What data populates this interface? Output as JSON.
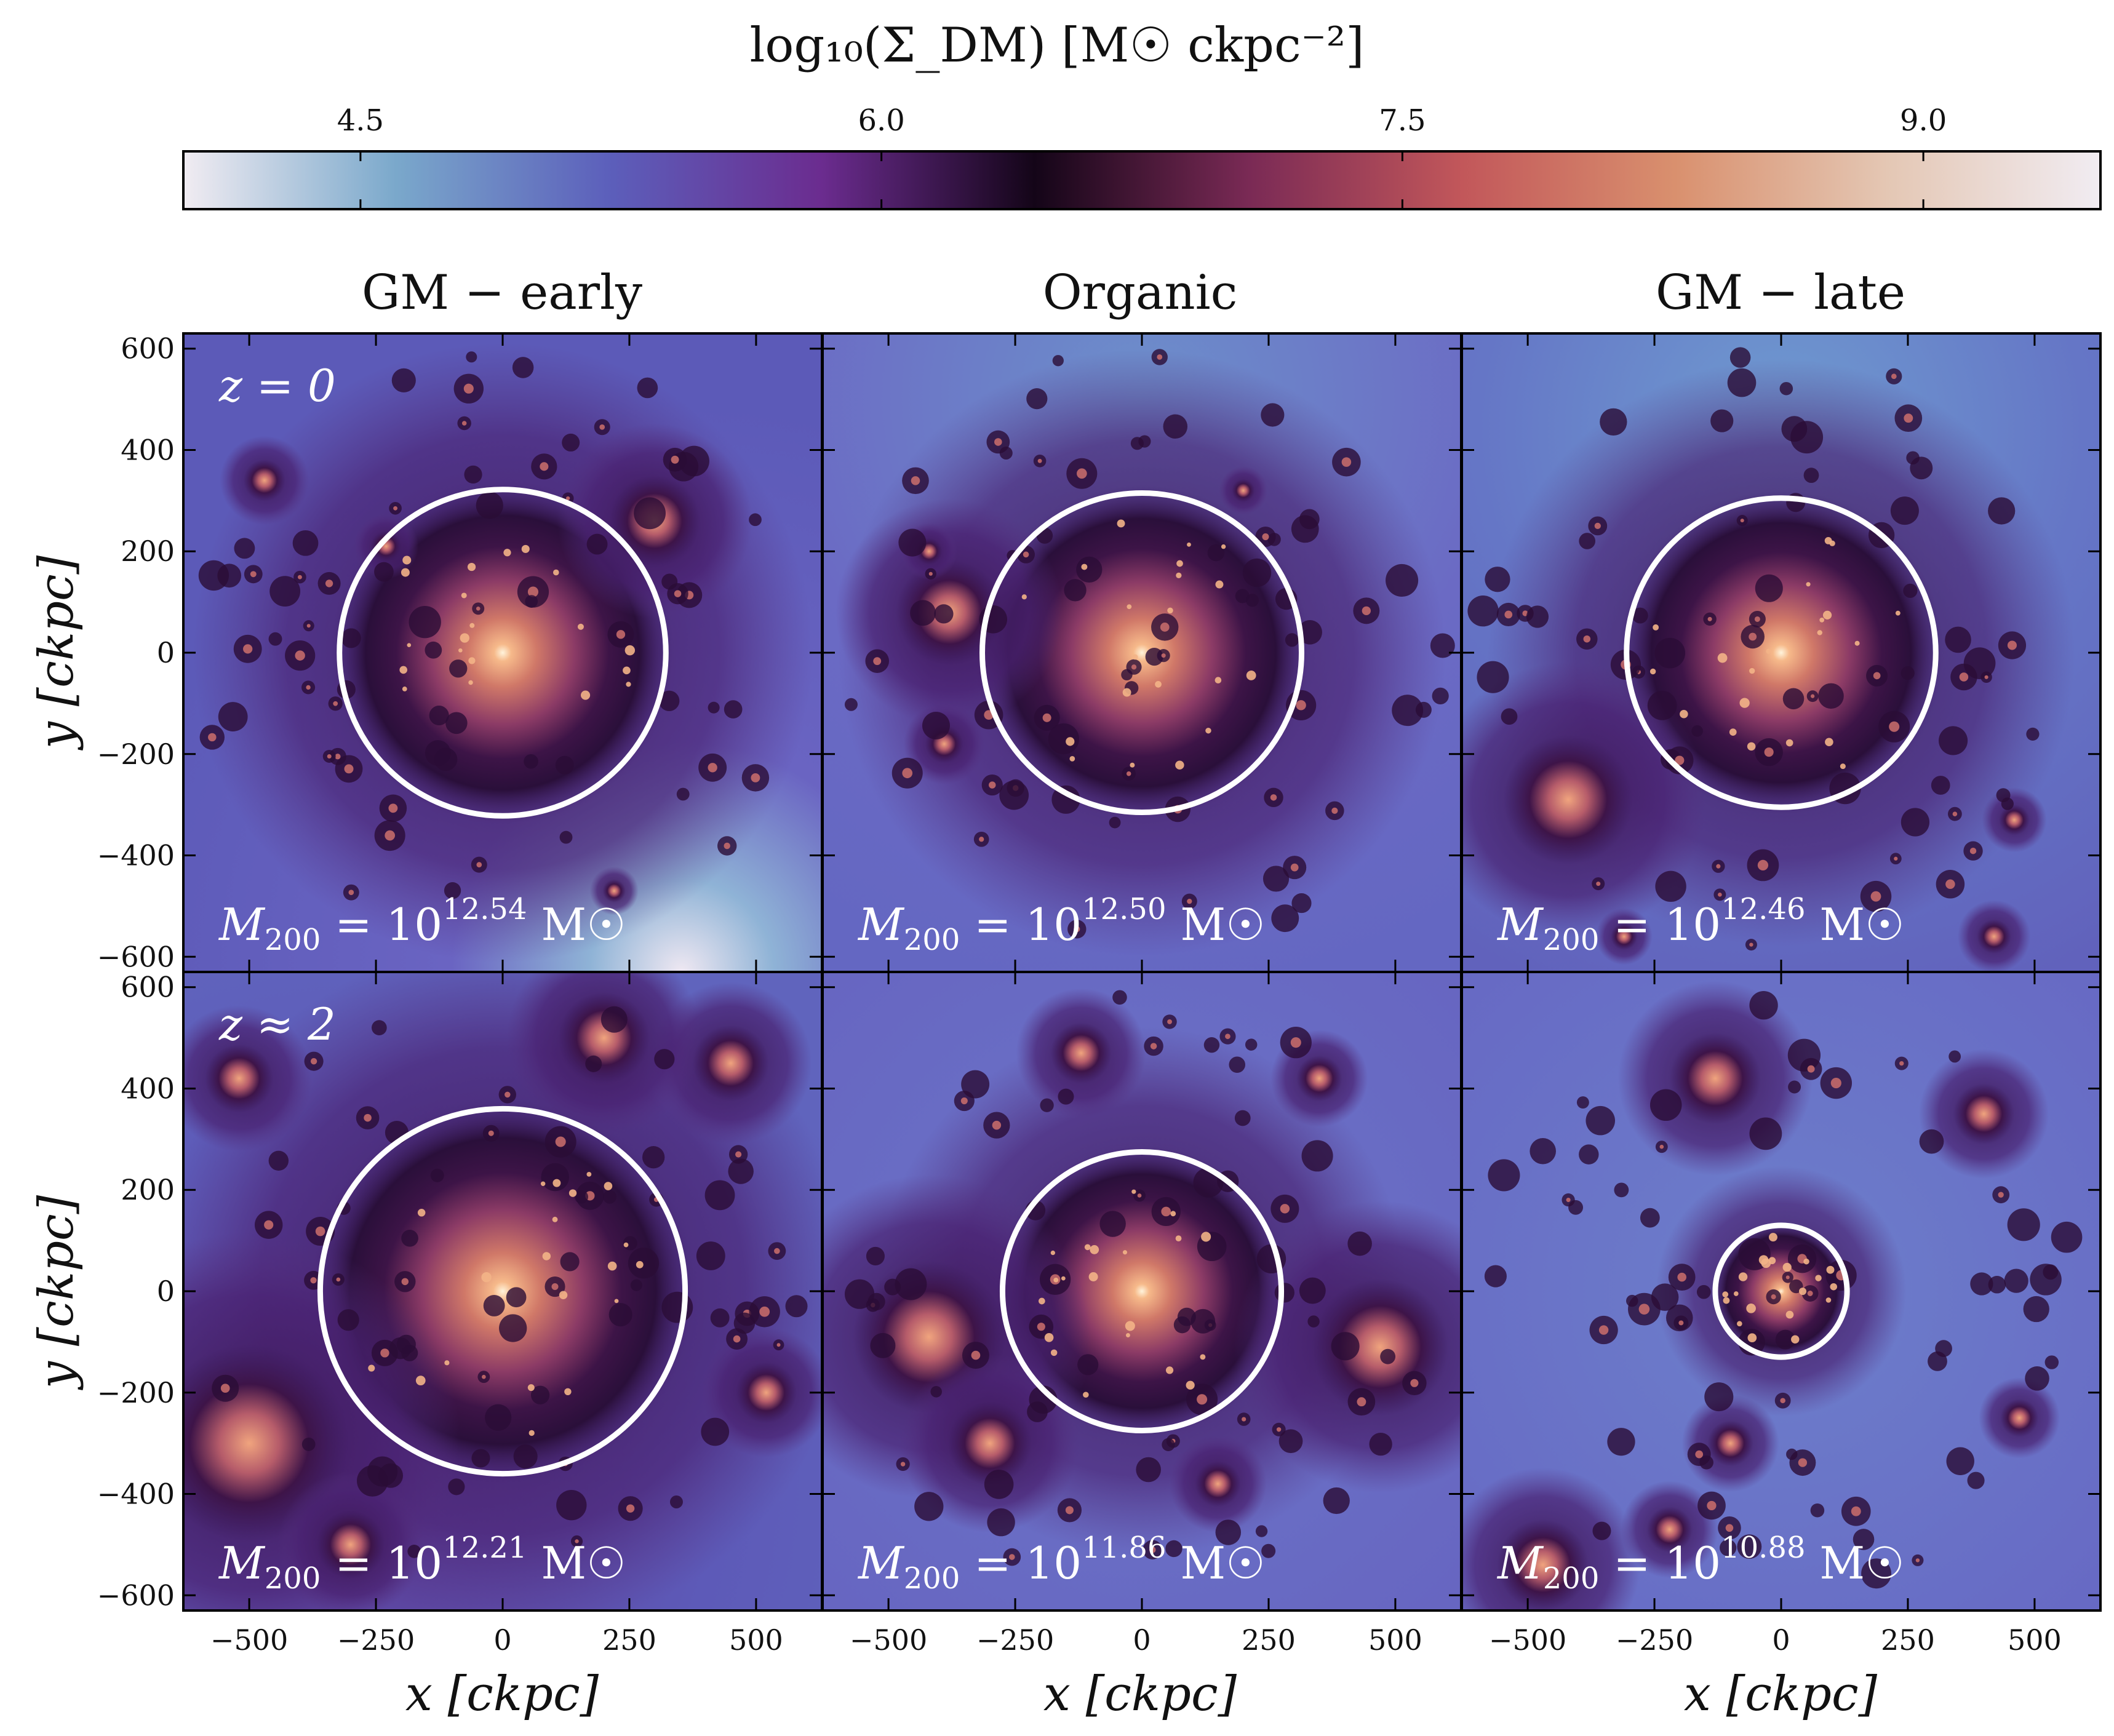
{
  "colorbar": {
    "label": "log₁₀(Σ_DM) [M☉ ckpc⁻²]",
    "ticks": [
      "4.5",
      "6.0",
      "7.5",
      "9.0"
    ],
    "tick_values": [
      4.5,
      6.0,
      7.5,
      9.0
    ],
    "range": [
      3.99,
      9.51
    ],
    "stops": [
      "#f1ecf2",
      "#7aa8cb",
      "#5c5fbb",
      "#6b2c8f",
      "#140518",
      "#7a2a55",
      "#c2575a",
      "#d9906e",
      "#e4c7b4",
      "#f1ecf2"
    ]
  },
  "columns": [
    "GM − early",
    "Organic",
    "GM − late"
  ],
  "rows": [
    "z = 0",
    "z ≈ 2"
  ],
  "axes": {
    "xlabel": "x [ckpc]",
    "ylabel": "y [ckpc]",
    "xticks": [
      "−500",
      "−250",
      "0",
      "250",
      "500"
    ],
    "xtick_values": [
      -500,
      -250,
      0,
      250,
      500
    ],
    "yticks": [
      "600",
      "400",
      "200",
      "0",
      "−200",
      "−400",
      "−600"
    ],
    "ytick_values": [
      600,
      400,
      200,
      0,
      -200,
      -400,
      -600
    ],
    "xlim": [
      -630,
      630
    ],
    "ylim": [
      -630,
      630
    ]
  },
  "chart_data": {
    "type": "heatmap",
    "panels": [
      {
        "row": "z = 0",
        "column": "GM − early",
        "m200_label": "M200 = 10^12.54 M☉",
        "m200_exp": "12.54",
        "log10_m200": 12.54,
        "r200_ckpc": 322
      },
      {
        "row": "z = 0",
        "column": "Organic",
        "m200_label": "M200 = 10^12.50 M☉",
        "m200_exp": "12.50",
        "log10_m200": 12.5,
        "r200_ckpc": 315
      },
      {
        "row": "z = 0",
        "column": "GM − late",
        "m200_label": "M200 = 10^12.46 M☉",
        "m200_exp": "12.46",
        "log10_m200": 12.46,
        "r200_ckpc": 305
      },
      {
        "row": "z ≈ 2",
        "column": "GM − early",
        "m200_label": "M200 = 10^12.21 M☉",
        "m200_exp": "12.21",
        "log10_m200": 12.21,
        "r200_ckpc": 360
      },
      {
        "row": "z ≈ 2",
        "column": "Organic",
        "m200_label": "M200 = 10^11.86 M☉",
        "m200_exp": "11.86",
        "log10_m200": 11.86,
        "r200_ckpc": 275
      },
      {
        "row": "z ≈ 2",
        "column": "GM − late",
        "m200_label": "M200 = 10^10.88 M☉",
        "m200_exp": "10.88",
        "log10_m200": 10.88,
        "r200_ckpc": 130
      }
    ]
  }
}
